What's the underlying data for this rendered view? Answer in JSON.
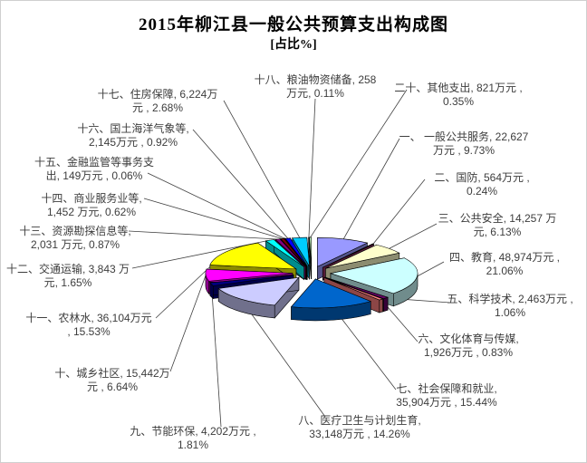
{
  "chart_data": {
    "type": "pie",
    "style": "3d-exploded",
    "title": "2015年柳江县一般公共预算支出构成图",
    "subtitle": "[占比%]",
    "unit": "万元",
    "layout_hints": {
      "start_angle_deg": -90,
      "direction": "clockwise",
      "legend_position": "none",
      "labels": "outside-with-leader-lines"
    },
    "colors": {
      "label_text": "#3d3d3d",
      "leader_line": "#404040",
      "slice_outline": "#000000",
      "background": "#ffffff"
    },
    "slices": [
      {
        "name": "一、一般公共服务",
        "value": 22627,
        "pct": 9.73,
        "color": "#9999FF",
        "label_lines": [
          "一、 一般公共服务, 22,627",
          "万元 , 9.73%"
        ]
      },
      {
        "name": "二、国防",
        "value": 564,
        "pct": 0.24,
        "color": "#993366",
        "label_lines": [
          "二、国防, 564万元 ,",
          "0.24%"
        ]
      },
      {
        "name": "三、公共安全",
        "value": 14257,
        "pct": 6.13,
        "color": "#FFFFCC",
        "label_lines": [
          "三、公共安全, 14,257 万",
          "元, 6.13%"
        ]
      },
      {
        "name": "四、教育",
        "value": 48974,
        "pct": 21.06,
        "color": "#CCFFFF",
        "label_lines": [
          "四、教育, 48,974万元 ,",
          "21.06%"
        ]
      },
      {
        "name": "五、科学技术",
        "value": 2463,
        "pct": 1.06,
        "color": "#660066",
        "label_lines": [
          "五、科学技术, 2,463万元 ,",
          "1.06%"
        ]
      },
      {
        "name": "六、文化体育与传媒",
        "value": 1926,
        "pct": 0.83,
        "color": "#FF8080",
        "label_lines": [
          "六、文化体育与传媒,",
          "1,926万元 , 0.83%"
        ]
      },
      {
        "name": "七、社会保障和就业",
        "value": 35904,
        "pct": 15.44,
        "color": "#0066CC",
        "label_lines": [
          "七、社会保障和就业,",
          "35,904万元 , 15.44%"
        ]
      },
      {
        "name": "八、医疗卫生与计划生育",
        "value": 33148,
        "pct": 14.26,
        "color": "#CCCCFF",
        "label_lines": [
          "八、医疗卫生与计划生育,",
          "33,148万元 , 14.26%"
        ]
      },
      {
        "name": "九、节能环保",
        "value": 4202,
        "pct": 1.81,
        "color": "#000080",
        "label_lines": [
          "九、节能环保, 4,202万元 ,",
          "1.81%"
        ]
      },
      {
        "name": "十、城乡社区",
        "value": 15442,
        "pct": 6.64,
        "color": "#FF00FF",
        "label_lines": [
          "十、城乡社区, 15,442万",
          "元 , 6.64%"
        ]
      },
      {
        "name": "十一、农林水",
        "value": 36104,
        "pct": 15.53,
        "color": "#FFFF00",
        "label_lines": [
          "十一、农林水, 36,104万元",
          ", 15.53%"
        ]
      },
      {
        "name": "十二、交通运输",
        "value": 3843,
        "pct": 1.65,
        "color": "#00FFFF",
        "label_lines": [
          "十二、交通运输, 3,843 万",
          "元, 1.65%"
        ]
      },
      {
        "name": "十三、资源勘探信息等",
        "value": 2031,
        "pct": 0.87,
        "color": "#800080",
        "label_lines": [
          "十三、资源勘探信息等,",
          "2,031 万元, 0.87%"
        ]
      },
      {
        "name": "十四、商业服务业等",
        "value": 1452,
        "pct": 0.62,
        "color": "#800000",
        "label_lines": [
          "十四、商业服务业等,",
          "1,452 万元, 0.62%"
        ]
      },
      {
        "name": "十五、金融监管等事务支出",
        "value": 149,
        "pct": 0.06,
        "color": "#008080",
        "label_lines": [
          "十五、金融监管等事务支",
          "出, 149万元 , 0.06%"
        ]
      },
      {
        "name": "十六、国土海洋气象等",
        "value": 2145,
        "pct": 0.92,
        "color": "#0000FF",
        "label_lines": [
          "十六、国土海洋气象等,",
          "2,145万元 , 0.92%"
        ]
      },
      {
        "name": "十七、住房保障",
        "value": 6224,
        "pct": 2.68,
        "color": "#00CCFF",
        "label_lines": [
          "十七、住房保障, 6,224万",
          "元 , 2.68%"
        ]
      },
      {
        "name": "十八、粮油物资储备",
        "value": 258,
        "pct": 0.11,
        "color": "#CCFFFF",
        "label_lines": [
          "十八、粮油物资储备, 258",
          "万元, 0.11%"
        ]
      },
      {
        "name": "二十、其他支出",
        "value": 821,
        "pct": 0.35,
        "color": "#CCFFCC",
        "label_lines": [
          "二十、其他支出, 821万元 ,",
          "0.35%"
        ]
      }
    ]
  }
}
